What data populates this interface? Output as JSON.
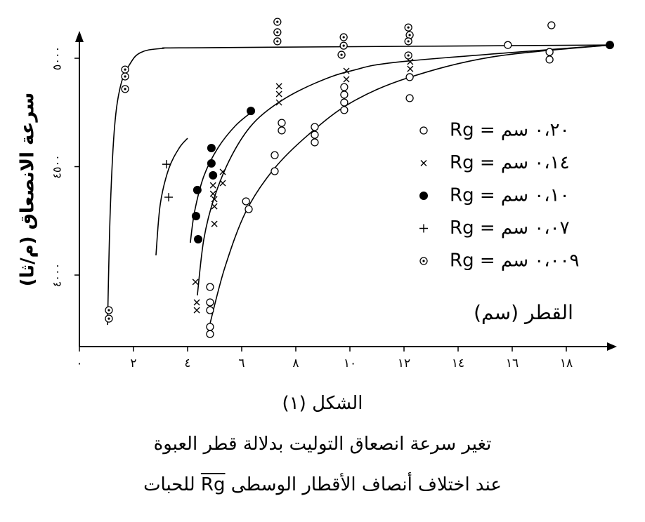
{
  "chart_data": {
    "type": "scatter",
    "ylabel": "سرعة الانصعاق (م/ثا)",
    "xlabel": "القطر (سم)",
    "xlim": [
      0,
      19.8
    ],
    "ylim": [
      3670,
      5180
    ],
    "xticks": [
      {
        "value": 0,
        "label": "٠"
      },
      {
        "value": 2,
        "label": "٢"
      },
      {
        "value": 4,
        "label": "٤"
      },
      {
        "value": 6,
        "label": "٦"
      },
      {
        "value": 8,
        "label": "٨"
      },
      {
        "value": 10,
        "label": "١٠"
      },
      {
        "value": 12,
        "label": "١٢"
      },
      {
        "value": 14,
        "label": "١٤"
      },
      {
        "value": 16,
        "label": "١٦"
      },
      {
        "value": 18,
        "label": "١٨"
      }
    ],
    "yticks": [
      {
        "value": 4000,
        "label": "٤٠٠٠"
      },
      {
        "value": 4500,
        "label": "٤٥٠٠"
      },
      {
        "value": 5000,
        "label": "٥٠٠٠"
      }
    ],
    "series": [
      {
        "name": "Rg = ٠،٢٠ سم",
        "marker": "circle",
        "color": "#000000",
        "x": [
          4.83,
          4.83,
          4.83,
          4.83,
          4.83,
          6.16,
          6.26,
          7.22,
          7.22,
          7.48,
          7.48,
          8.7,
          8.7,
          8.7,
          9.79,
          9.79,
          9.79,
          9.79,
          12.21,
          12.21,
          15.84,
          17.38,
          17.38,
          17.45
        ],
        "values": [
          3945,
          3874,
          3838,
          3761,
          3728,
          4340,
          4304,
          4553,
          4479,
          4702,
          4667,
          4683,
          4647,
          4612,
          4867,
          4832,
          4796,
          4761,
          4816,
          4913,
          5061,
          5029,
          4994,
          5152
        ]
      },
      {
        "name": "Rg = ٠،١٤ سم",
        "marker": "x",
        "color": "#000000",
        "x": [
          4.29,
          4.34,
          4.34,
          4.94,
          4.94,
          4.99,
          4.99,
          4.99,
          5.3,
          5.3,
          7.38,
          7.38,
          7.38,
          9.87,
          9.87,
          12.23,
          12.23
        ],
        "values": [
          3968,
          3874,
          3838,
          4414,
          4375,
          4350,
          4317,
          4236,
          4476,
          4424,
          4871,
          4835,
          4796,
          4942,
          4903,
          4984,
          4951
        ]
      },
      {
        "name": "Rg = ٠،١٠ سم",
        "marker": "filled",
        "color": "#000000",
        "x": [
          4.88,
          4.88,
          4.94,
          4.36,
          4.31,
          4.39,
          6.34,
          19.61
        ],
        "values": [
          4586,
          4515,
          4460,
          4392,
          4272,
          4165,
          4757,
          5061
        ]
      },
      {
        "name": "Rg = ٠،٠٧ سم",
        "marker": "plus",
        "color": "#000000",
        "x": [
          3.22,
          3.3
        ],
        "values": [
          4511,
          4359
        ]
      },
      {
        "name": "Rg = ٠،٠٠٩ سم",
        "marker": "dot-circle",
        "color": "#000000",
        "x": [
          1.09,
          1.09,
          1.69,
          1.69,
          1.69,
          7.32,
          7.32,
          7.32,
          9.77,
          9.77,
          9.69,
          12.16,
          12.21,
          12.16,
          12.16
        ],
        "values": [
          3838,
          3799,
          4948,
          4916,
          4858,
          5168,
          5120,
          5078,
          5097,
          5058,
          5016,
          5142,
          5107,
          5078,
          5013
        ]
      }
    ],
    "curves": [
      {
        "x": [
          1.04,
          1.14,
          1.3,
          1.53,
          1.87,
          2.26,
          3.04,
          4.86,
          19.61
        ],
        "y": [
          3770,
          4294,
          4683,
          4877,
          4974,
          5026,
          5045,
          5049,
          5061
        ]
      },
      {
        "x": [
          2.83,
          2.99,
          3.3,
          3.69,
          4.0
        ],
        "y": [
          4091,
          4327,
          4489,
          4586,
          4631
        ]
      },
      {
        "x": [
          4.1,
          4.26,
          4.6,
          5.12,
          5.77,
          6.42
        ],
        "y": [
          4149,
          4294,
          4456,
          4586,
          4689,
          4757
        ]
      },
      {
        "x": [
          4.36,
          4.6,
          4.99,
          5.64,
          6.42,
          7.45,
          8.75,
          10.05,
          12.13,
          19.61
        ],
        "y": [
          3906,
          4165,
          4359,
          4553,
          4699,
          4803,
          4887,
          4942,
          4987,
          5061
        ]
      },
      {
        "x": [
          4.83,
          5.38,
          6.16,
          7.19,
          8.49,
          10.05,
          12.13,
          15.25,
          19.61
        ],
        "y": [
          3777,
          4036,
          4294,
          4489,
          4650,
          4796,
          4909,
          5006,
          5061
        ]
      }
    ],
    "figure_label": "الشكل (١)",
    "caption": [
      "تغير سرعة انصعاق التوليت بدلالة قطر العبوة",
      "عند اختلاف أنصاف الأقطار الوسطى",
      "Rg",
      "للحبات"
    ]
  }
}
